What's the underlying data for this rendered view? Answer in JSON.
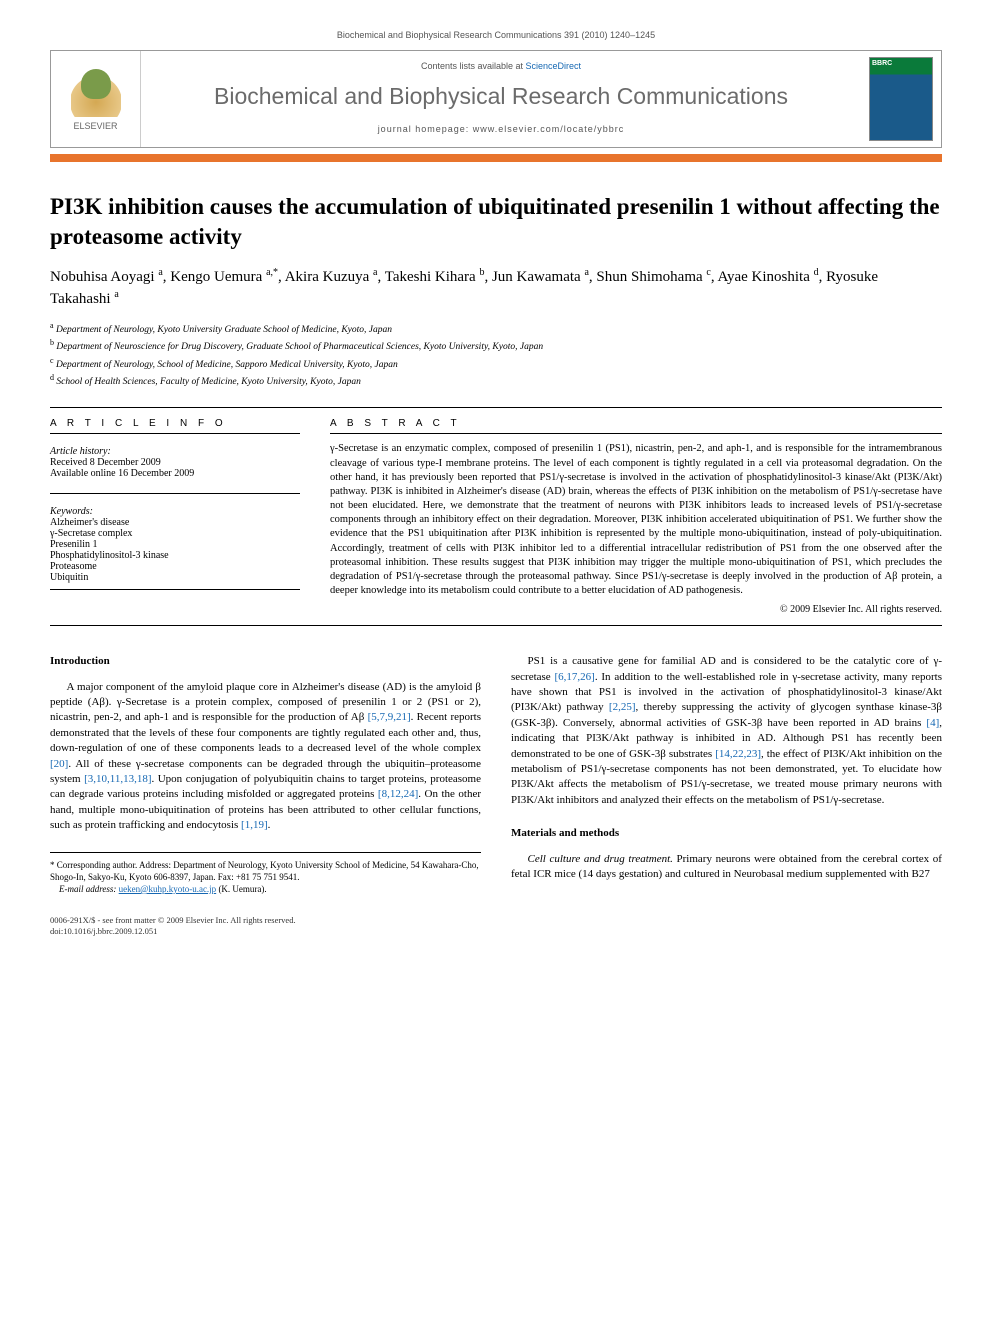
{
  "running_head": "Biochemical and Biophysical Research Communications 391 (2010) 1240–1245",
  "header": {
    "publisher": "ELSEVIER",
    "contents_prefix": "Contents lists available at ",
    "contents_link": "ScienceDirect",
    "journal_name": "Biochemical and Biophysical Research Communications",
    "homepage_prefix": "journal homepage: ",
    "homepage_url": "www.elsevier.com/locate/ybbrc"
  },
  "title": "PI3K inhibition causes the accumulation of ubiquitinated presenilin 1 without affecting the proteasome activity",
  "authors_html": "Nobuhisa Aoyagi <sup>a</sup>, Kengo Uemura <sup>a,*</sup>, Akira Kuzuya <sup>a</sup>, Takeshi Kihara <sup>b</sup>, Jun Kawamata <sup>a</sup>, Shun Shimohama <sup>c</sup>, Ayae Kinoshita <sup>d</sup>, Ryosuke Takahashi <sup>a</sup>",
  "affiliations": [
    "Department of Neurology, Kyoto University Graduate School of Medicine, Kyoto, Japan",
    "Department of Neuroscience for Drug Discovery, Graduate School of Pharmaceutical Sciences, Kyoto University, Kyoto, Japan",
    "Department of Neurology, School of Medicine, Sapporo Medical University, Kyoto, Japan",
    "School of Health Sciences, Faculty of Medicine, Kyoto University, Kyoto, Japan"
  ],
  "aff_markers": [
    "a",
    "b",
    "c",
    "d"
  ],
  "article_info": {
    "heading": "A R T I C L E   I N F O",
    "history_head": "Article history:",
    "received": "Received 8 December 2009",
    "available": "Available online 16 December 2009",
    "keywords_head": "Keywords:",
    "keywords": [
      "Alzheimer's disease",
      "γ-Secretase complex",
      "Presenilin 1",
      "Phosphatidylinositol-3 kinase",
      "Proteasome",
      "Ubiquitin"
    ]
  },
  "abstract": {
    "heading": "A B S T R A C T",
    "text": "γ-Secretase is an enzymatic complex, composed of presenilin 1 (PS1), nicastrin, pen-2, and aph-1, and is responsible for the intramembranous cleavage of various type-I membrane proteins. The level of each component is tightly regulated in a cell via proteasomal degradation. On the other hand, it has previously been reported that PS1/γ-secretase is involved in the activation of phosphatidylinositol-3 kinase/Akt (PI3K/Akt) pathway. PI3K is inhibited in Alzheimer's disease (AD) brain, whereas the effects of PI3K inhibition on the metabolism of PS1/γ-secretase have not been elucidated. Here, we demonstrate that the treatment of neurons with PI3K inhibitors leads to increased levels of PS1/γ-secretase components through an inhibitory effect on their degradation. Moreover, PI3K inhibition accelerated ubiquitination of PS1. We further show the evidence that the PS1 ubiquitination after PI3K inhibition is represented by the multiple mono-ubiquitination, instead of poly-ubiquitination. Accordingly, treatment of cells with PI3K inhibitor led to a differential intracellular redistribution of PS1 from the one observed after the proteasomal inhibition. These results suggest that PI3K inhibition may trigger the multiple mono-ubiquitination of PS1, which precludes the degradation of PS1/γ-secretase through the proteasomal pathway. Since PS1/γ-secretase is deeply involved in the production of Aβ protein, a deeper knowledge into its metabolism could contribute to a better elucidation of AD pathogenesis.",
    "copyright": "© 2009 Elsevier Inc. All rights reserved."
  },
  "sections": {
    "intro_head": "Introduction",
    "intro_p1": "A major component of the amyloid plaque core in Alzheimer's disease (AD) is the amyloid β peptide (Aβ). γ-Secretase is a protein complex, composed of presenilin 1 or 2 (PS1 or 2), nicastrin, pen-2, and aph-1 and is responsible for the production of Aβ [5,7,9,21]. Recent reports demonstrated that the levels of these four components are tightly regulated each other and, thus, down-regulation of one of these components leads to a decreased level of the whole complex [20]. All of these γ-secretase components can be degraded through the ubiquitin–proteasome system [3,10,11,13,18]. Upon conjugation of polyubiquitin chains to target proteins, proteasome can degrade various proteins including misfolded or aggregated proteins [8,12,24]. On the other hand, multiple mono-ubiquitination of proteins has been attributed to other cellular functions, such as protein trafficking and endocytosis [1,19].",
    "right_p1": "PS1 is a causative gene for familial AD and is considered to be the catalytic core of γ-secretase [6,17,26]. In addition to the well-established role in γ-secretase activity, many reports have shown that PS1 is involved in the activation of phosphatidylinositol-3 kinase/Akt (PI3K/Akt) pathway [2,25], thereby suppressing the activity of glycogen synthase kinase-3β (GSK-3β). Conversely, abnormal activities of GSK-3β have been reported in AD brains [4], indicating that PI3K/Akt pathway is inhibited in AD. Although PS1 has recently been demonstrated to be one of GSK-3β substrates [14,22,23], the effect of PI3K/Akt inhibition on the metabolism of PS1/γ-secretase components has not been demonstrated, yet. To elucidate how PI3K/Akt affects the metabolism of PS1/γ-secretase, we treated mouse primary neurons with PI3K/Akt inhibitors and analyzed their effects on the metabolism of PS1/γ-secretase.",
    "mm_head": "Materials and methods",
    "mm_p1": "Cell culture and drug treatment. Primary neurons were obtained from the cerebral cortex of fetal ICR mice (14 days gestation) and cultured in Neurobasal medium supplemented with B27"
  },
  "footnote": {
    "corr": "* Corresponding author. Address: Department of Neurology, Kyoto University School of Medicine, 54 Kawahara-Cho, Shogo-In, Sakyo-Ku, Kyoto 606-8397, Japan. Fax: +81 75 751 9541.",
    "email_label": "E-mail address:",
    "email": "ueken@kuhp.kyoto-u.ac.jp",
    "email_tail": " (K. Uemura)."
  },
  "footer": {
    "line1": "0006-291X/$ - see front matter © 2009 Elsevier Inc. All rights reserved.",
    "line2": "doi:10.1016/j.bbrc.2009.12.051"
  },
  "refs_intro": "[5,7,9,21]",
  "refs_complex": "[20]",
  "refs_ubi": "[3,10,11,13,18]",
  "refs_prot": "[8,12,24]",
  "refs_traf": "[1,19]",
  "refs_cat": "[6,17,26]",
  "refs_akt": "[2,25]",
  "refs_gsk": "[4]",
  "refs_sub": "[14,22,23]"
}
